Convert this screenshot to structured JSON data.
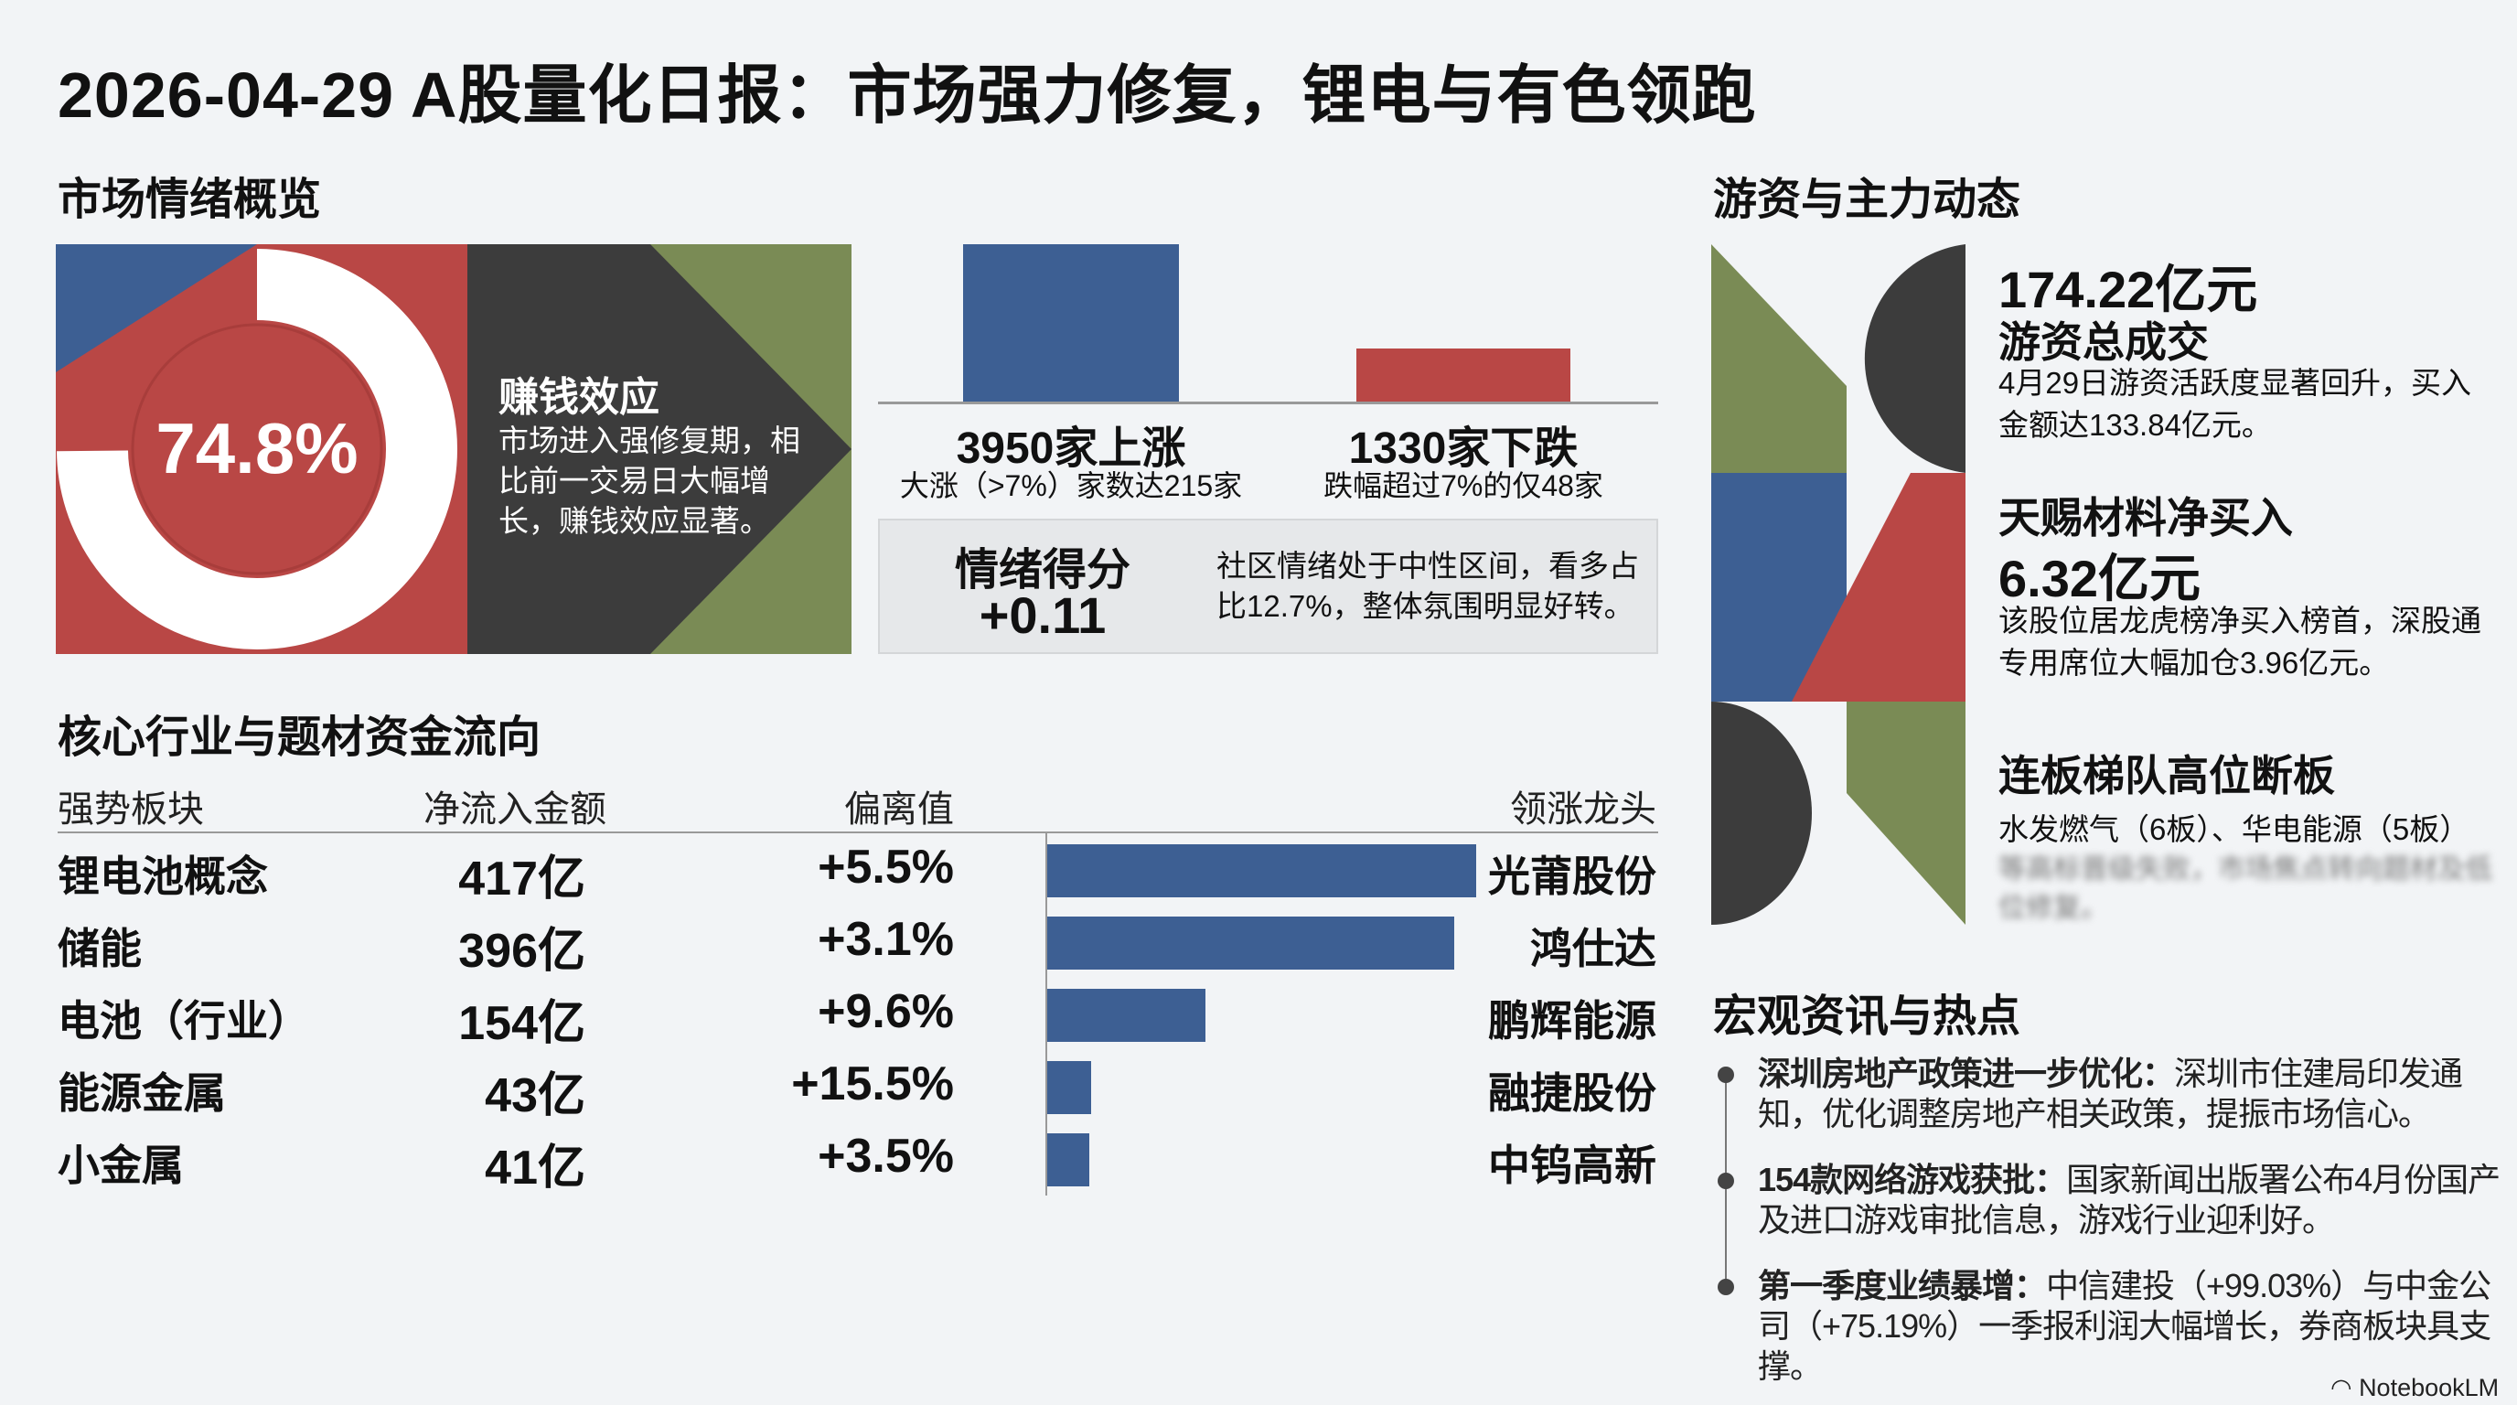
{
  "title": "2026-04-29 A股量化日报：市场强力修复，锂电与有色领跑",
  "colors": {
    "blue": "#3d5f93",
    "red": "#b94745",
    "dark": "#3c3c3c",
    "green": "#7a8b55",
    "bg": "#f2f4f6"
  },
  "sentiment": {
    "heading": "市场情绪概览",
    "donut_value": "74.8%",
    "donut_fraction": 0.748,
    "effect_title": "赚钱效应",
    "effect_text": "市场进入强修复期，相比前一交易日大幅增长，赚钱效应显著。",
    "up": {
      "count": 3950,
      "label": "3950家上涨",
      "sub": "大涨（>7%）家数达215家"
    },
    "down": {
      "count": 1330,
      "label": "1330家下跌",
      "sub": "跌幅超过7%的仅48家"
    },
    "score_label": "情绪得分",
    "score_value": "+0.11",
    "score_text": "社区情绪处于中性区间，看多占比12.7%，整体氛围明显好转。"
  },
  "flows": {
    "heading": "核心行业与题材资金流向",
    "columns": [
      "强势板块",
      "净流入金额",
      "偏离值",
      "领涨龙头"
    ],
    "rows": [
      {
        "sector": "锂电池概念",
        "amount": "417亿",
        "value": 417,
        "deviation": "+5.5%",
        "leader": "光莆股份"
      },
      {
        "sector": "储能",
        "amount": "396亿",
        "value": 396,
        "deviation": "+3.1%",
        "leader": "鸿仕达"
      },
      {
        "sector": "电池（行业）",
        "amount": "154亿",
        "value": 154,
        "deviation": "+9.6%",
        "leader": "鹏辉能源"
      },
      {
        "sector": "能源金属",
        "amount": "43亿",
        "value": 43,
        "deviation": "+15.5%",
        "leader": "融捷股份"
      },
      {
        "sector": "小金属",
        "amount": "41亿",
        "value": 41,
        "deviation": "+3.5%",
        "leader": "中钨高新"
      }
    ]
  },
  "hot_money": {
    "heading": "游资与主力动态",
    "items": [
      {
        "big": "174.22亿元",
        "title": "游资总成交",
        "text": "4月29日游资活跃度显著回升，买入金额达133.84亿元。"
      },
      {
        "title": "天赐材料净买入",
        "big": "6.32亿元",
        "text": "该股位居龙虎榜净买入榜首，深股通专用席位大幅加仓3.96亿元。"
      },
      {
        "title": "连板梯队高位断板",
        "text": "水发燃气（6板）、华电能源（5板）",
        "blurred": "等高标晋级失败，市场焦点转向题材及低位修复。"
      }
    ]
  },
  "macro": {
    "heading": "宏观资讯与热点",
    "items": [
      {
        "bold": "深圳房地产政策进一步优化：",
        "text": "深圳市住建局印发通知，优化调整房地产相关政策，提振市场信心。"
      },
      {
        "bold": "154款网络游戏获批：",
        "text": "国家新闻出版署公布4月份国产及进口游戏审批信息，游戏行业迎利好。"
      },
      {
        "bold": "第一季度业绩暴增：",
        "text": "中信建投（+99.03%）与中金公司（+75.19%）一季报利润大幅增长，券商板块具支撑。"
      }
    ]
  },
  "watermark": "NotebookLM"
}
